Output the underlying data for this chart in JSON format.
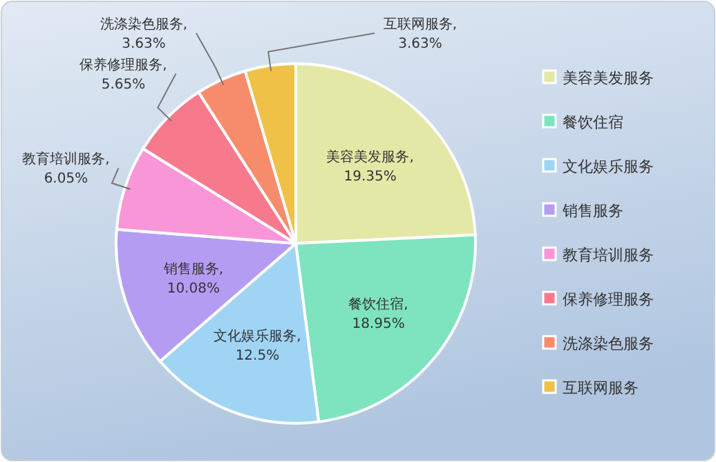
{
  "chart_data": {
    "type": "pie",
    "categories": [
      "美容美发服务",
      "餐饮住宿",
      "文化娱乐服务",
      "销售服务",
      "教育培训服务",
      "保养修理服务",
      "洗涤染色服务",
      "互联网服务"
    ],
    "values": [
      19.35,
      18.95,
      12.5,
      10.08,
      6.05,
      5.65,
      3.63,
      3.63
    ],
    "colors": [
      "#e3e8a6",
      "#7de4bf",
      "#a0d4f5",
      "#b59cf3",
      "#f896d8",
      "#f67a8c",
      "#f78c6c",
      "#efc146"
    ],
    "value_labels": [
      "美容美发服务,\n19.35%",
      "餐饮住宿,\n18.95%",
      "文化娱乐服务,\n12.5%",
      "销售服务,\n10.08%",
      "教育培训服务,\n6.05%",
      "保养修理服务,\n5.65%",
      "洗涤染色服务,\n3.63%",
      "互联网服务,\n3.63%"
    ],
    "legend": "right"
  }
}
